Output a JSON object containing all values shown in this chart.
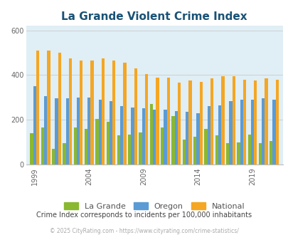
{
  "title": "La Grande Violent Crime Index",
  "subtitle": "Crime Index corresponds to incidents per 100,000 inhabitants",
  "footer": "© 2025 CityRating.com - https://www.cityrating.com/crime-statistics/",
  "years": [
    1999,
    2000,
    2001,
    2002,
    2003,
    2004,
    2005,
    2006,
    2007,
    2008,
    2009,
    2010,
    2011,
    2012,
    2013,
    2014,
    2015,
    2016,
    2017,
    2018,
    2019,
    2020,
    2021
  ],
  "la_grande": [
    140,
    165,
    70,
    95,
    165,
    160,
    205,
    190,
    130,
    133,
    143,
    270,
    165,
    215,
    110,
    125,
    160,
    130,
    97,
    100,
    135,
    97,
    105
  ],
  "oregon": [
    350,
    305,
    295,
    295,
    300,
    300,
    290,
    285,
    260,
    255,
    250,
    245,
    245,
    240,
    235,
    230,
    260,
    265,
    285,
    290,
    290,
    295,
    290
  ],
  "national": [
    510,
    510,
    500,
    475,
    465,
    465,
    475,
    465,
    455,
    430,
    405,
    390,
    387,
    365,
    375,
    370,
    385,
    395,
    395,
    380,
    375,
    385,
    378
  ],
  "la_grande_color": "#8ab831",
  "oregon_color": "#5b9bd5",
  "national_color": "#f5a623",
  "bg_color": "#e0eef5",
  "title_color": "#1a5276",
  "subtitle_color": "#444444",
  "footer_color": "#aaaaaa",
  "ylim": [
    0,
    620
  ],
  "yticks": [
    0,
    200,
    400,
    600
  ],
  "grid_color": "#cccccc",
  "bar_width": 0.28,
  "label_years": [
    1999,
    2004,
    2009,
    2014,
    2019
  ]
}
